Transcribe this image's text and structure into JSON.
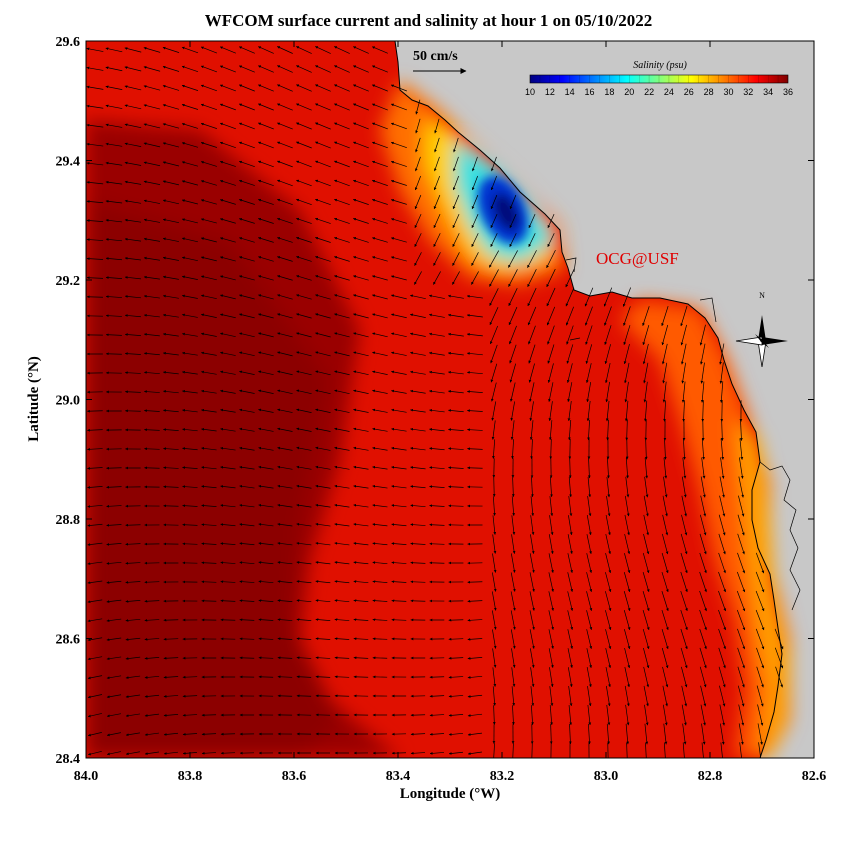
{
  "title": "WFCOM surface current and salinity at hour 1 on 05/10/2022",
  "x_axis": {
    "label": "Longitude (°W)",
    "ticks": [
      "84.0",
      "83.8",
      "83.6",
      "83.4",
      "83.2",
      "83.0",
      "82.8",
      "82.6"
    ],
    "range": [
      84.0,
      82.6
    ]
  },
  "y_axis": {
    "label": "Latitude (°N)",
    "ticks": [
      "29.6",
      "29.4",
      "29.2",
      "29.0",
      "28.8",
      "28.6",
      "28.4"
    ],
    "range": [
      28.4,
      29.6
    ]
  },
  "scale_vector": {
    "label": "50 cm/s",
    "speed_cm_s": 50
  },
  "colorbar": {
    "title": "Salinity (psu)",
    "ticks": [
      "10",
      "12",
      "14",
      "16",
      "18",
      "20",
      "22",
      "24",
      "26",
      "28",
      "30",
      "32",
      "34",
      "36"
    ],
    "range": [
      10,
      36
    ],
    "colors": [
      "#00007f",
      "#0000ff",
      "#0080ff",
      "#00ffff",
      "#80ff80",
      "#ffff00",
      "#ff8000",
      "#ff0000",
      "#7f0000"
    ]
  },
  "watermark": "OCG@USF",
  "compass_label": "N",
  "colors": {
    "land": "#c8c8c8",
    "coast": "#000000",
    "sea_dark": "#9a0000",
    "sea_red": "#e01000",
    "sea_orange": "#ff5a00",
    "fresh_plume": "#00207f",
    "watermark": "#e00000"
  }
}
